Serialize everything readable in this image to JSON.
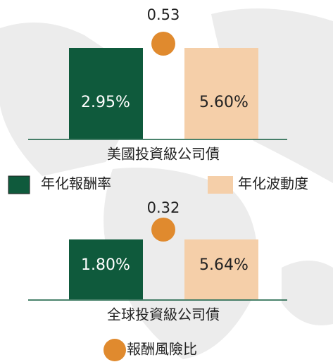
{
  "groups": [
    {
      "name": "美國投資級公司債",
      "return": "2.95%",
      "volatility": "5.60%",
      "ratio": "0.53"
    },
    {
      "name": "全球投資級公司債",
      "return": "1.80%",
      "volatility": "5.64%",
      "ratio": "0.32"
    }
  ],
  "legend": {
    "return": "年化報酬率",
    "volatility": "年化波動度",
    "ratio": "報酬風險比"
  }
}
